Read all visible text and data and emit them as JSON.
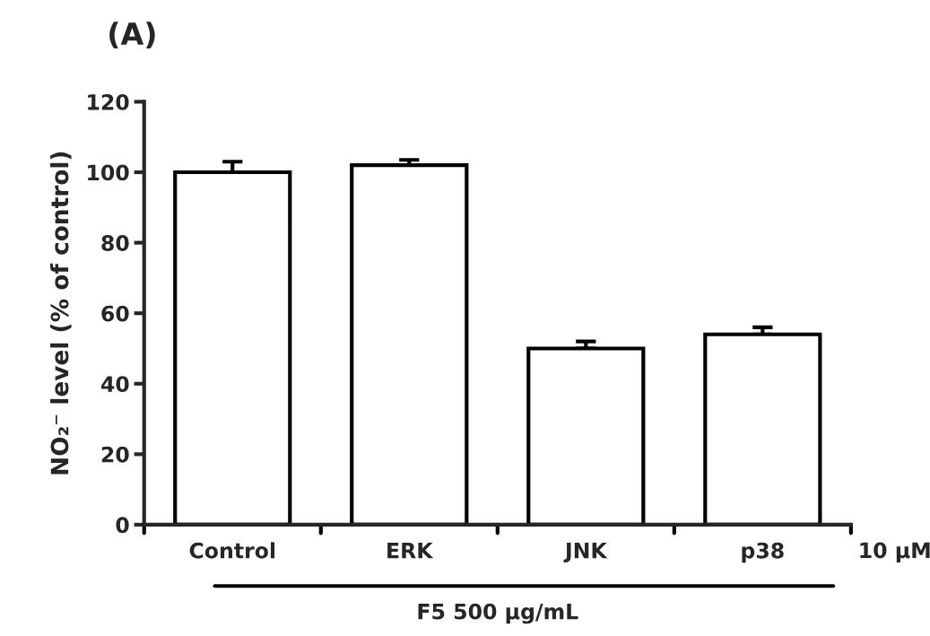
{
  "chart_data": {
    "type": "bar",
    "title": "(A)",
    "ylabel": "NO₂⁻ level (% of control)",
    "categories": [
      "Control",
      "ERK",
      "JNK",
      "p38"
    ],
    "series": [
      {
        "color": "#ffffff",
        "values": [
          100,
          102,
          50,
          54
        ],
        "errors": [
          3,
          1.5,
          2,
          2
        ]
      }
    ],
    "ylim": [
      0,
      120
    ],
    "yticks": [
      0,
      20,
      40,
      60,
      80,
      100,
      120
    ],
    "grid": false,
    "legend": false,
    "annotations": [
      "10 μM",
      "F5 500 μg/mL"
    ]
  }
}
